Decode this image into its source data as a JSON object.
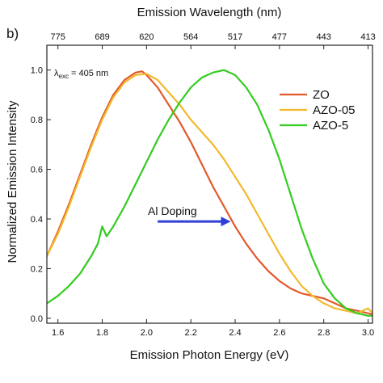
{
  "chart_data": {
    "type": "line",
    "panel_label": "b)",
    "xlabel": "Emission Photon Energy (eV)",
    "ylabel": "Normalized Emission Intensity",
    "x2label": "Emission Wavelength (nm)",
    "xlim": [
      1.55,
      3.02
    ],
    "ylim": [
      -0.02,
      1.1
    ],
    "x_ticks": [
      "1.6",
      "1.8",
      "2.0",
      "2.2",
      "2.4",
      "2.6",
      "2.8",
      "3.0"
    ],
    "x_tick_values": [
      1.6,
      1.8,
      2.0,
      2.2,
      2.4,
      2.6,
      2.8,
      3.0
    ],
    "y_ticks": [
      "0.0",
      "0.2",
      "0.4",
      "0.6",
      "0.8",
      "1.0"
    ],
    "y_tick_values": [
      0.0,
      0.2,
      0.4,
      0.6,
      0.8,
      1.0
    ],
    "x2_ticks": [
      "775",
      "689",
      "620",
      "564",
      "517",
      "477",
      "443",
      "413"
    ],
    "x2_tick_values": [
      1.6,
      1.8,
      2.0,
      2.2,
      2.4,
      2.6,
      2.8,
      3.0
    ],
    "grid": false,
    "legend_position": "top-right",
    "annotations": {
      "excitation_prefix": "λ",
      "excitation_sub": "exc",
      "excitation_value": " = 405 nm",
      "arrow_label": "Al Doping",
      "arrow_from": [
        2.05,
        0.39
      ],
      "arrow_to": [
        2.38,
        0.39
      ]
    },
    "series": [
      {
        "name": "ZO",
        "color": "#e2592b",
        "x": [
          1.55,
          1.6,
          1.65,
          1.7,
          1.75,
          1.8,
          1.85,
          1.9,
          1.95,
          1.98,
          2.0,
          2.05,
          2.1,
          2.15,
          2.2,
          2.25,
          2.3,
          2.35,
          2.4,
          2.45,
          2.5,
          2.55,
          2.6,
          2.65,
          2.7,
          2.75,
          2.8,
          2.85,
          2.9,
          2.95,
          3.0,
          3.02
        ],
        "y": [
          0.25,
          0.35,
          0.46,
          0.58,
          0.7,
          0.81,
          0.9,
          0.96,
          0.99,
          0.995,
          0.98,
          0.93,
          0.86,
          0.79,
          0.71,
          0.62,
          0.53,
          0.45,
          0.37,
          0.3,
          0.24,
          0.19,
          0.15,
          0.12,
          0.1,
          0.09,
          0.08,
          0.06,
          0.04,
          0.03,
          0.02,
          0.015
        ]
      },
      {
        "name": "AZO-05",
        "color": "#f2b92c",
        "x": [
          1.55,
          1.6,
          1.65,
          1.7,
          1.75,
          1.8,
          1.85,
          1.9,
          1.95,
          2.0,
          2.05,
          2.1,
          2.15,
          2.2,
          2.25,
          2.3,
          2.35,
          2.4,
          2.45,
          2.5,
          2.55,
          2.6,
          2.65,
          2.7,
          2.75,
          2.8,
          2.85,
          2.9,
          2.95,
          3.0,
          3.02
        ],
        "y": [
          0.25,
          0.34,
          0.45,
          0.57,
          0.69,
          0.8,
          0.89,
          0.95,
          0.98,
          0.985,
          0.96,
          0.91,
          0.86,
          0.8,
          0.75,
          0.7,
          0.64,
          0.57,
          0.5,
          0.42,
          0.34,
          0.26,
          0.19,
          0.13,
          0.09,
          0.06,
          0.04,
          0.03,
          0.02,
          0.04,
          0.02
        ]
      },
      {
        "name": "AZO-5",
        "color": "#33cc1f",
        "x": [
          1.55,
          1.6,
          1.65,
          1.7,
          1.75,
          1.78,
          1.8,
          1.82,
          1.85,
          1.9,
          1.95,
          2.0,
          2.05,
          2.1,
          2.15,
          2.2,
          2.25,
          2.3,
          2.35,
          2.4,
          2.45,
          2.5,
          2.55,
          2.6,
          2.65,
          2.7,
          2.75,
          2.8,
          2.85,
          2.9,
          2.95,
          3.0,
          3.02
        ],
        "y": [
          0.06,
          0.09,
          0.13,
          0.18,
          0.25,
          0.3,
          0.37,
          0.33,
          0.37,
          0.45,
          0.54,
          0.63,
          0.72,
          0.8,
          0.87,
          0.93,
          0.97,
          0.99,
          1.0,
          0.98,
          0.93,
          0.86,
          0.76,
          0.64,
          0.5,
          0.36,
          0.24,
          0.14,
          0.08,
          0.04,
          0.02,
          0.01,
          0.01
        ]
      }
    ]
  }
}
